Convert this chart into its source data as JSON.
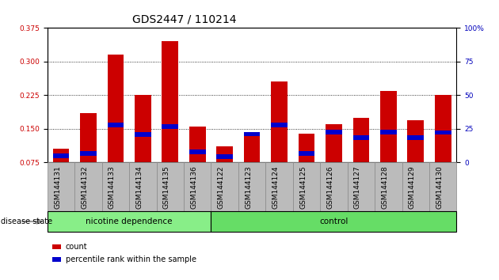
{
  "title": "GDS2447 / 110214",
  "categories": [
    "GSM144131",
    "GSM144132",
    "GSM144133",
    "GSM144134",
    "GSM144135",
    "GSM144136",
    "GSM144122",
    "GSM144123",
    "GSM144124",
    "GSM144125",
    "GSM144126",
    "GSM144127",
    "GSM144128",
    "GSM144129",
    "GSM144130"
  ],
  "count_values": [
    0.105,
    0.185,
    0.315,
    0.225,
    0.345,
    0.155,
    0.11,
    0.138,
    0.255,
    0.14,
    0.16,
    0.175,
    0.235,
    0.17,
    0.225
  ],
  "percentile_values": [
    0.09,
    0.095,
    0.158,
    0.137,
    0.155,
    0.098,
    0.088,
    0.138,
    0.158,
    0.095,
    0.143,
    0.13,
    0.143,
    0.13,
    0.142
  ],
  "ylim_left": [
    0.075,
    0.375
  ],
  "ylim_right": [
    0,
    100
  ],
  "yticks_left": [
    0.075,
    0.15,
    0.225,
    0.3,
    0.375
  ],
  "yticks_right": [
    0,
    25,
    50,
    75,
    100
  ],
  "bar_color": "#cc0000",
  "percentile_color": "#0000cc",
  "group1_label": "nicotine dependence",
  "group2_label": "control",
  "group1_count": 6,
  "group2_count": 9,
  "group1_color": "#88ee88",
  "group2_color": "#66dd66",
  "disease_state_label": "disease state",
  "legend_count": "count",
  "legend_percentile": "percentile rank within the sample",
  "bar_width": 0.6,
  "background_color": "#ffffff",
  "tick_area_color": "#bbbbbb",
  "title_fontsize": 10,
  "tick_label_fontsize": 6.5,
  "blue_bar_height": 0.01
}
